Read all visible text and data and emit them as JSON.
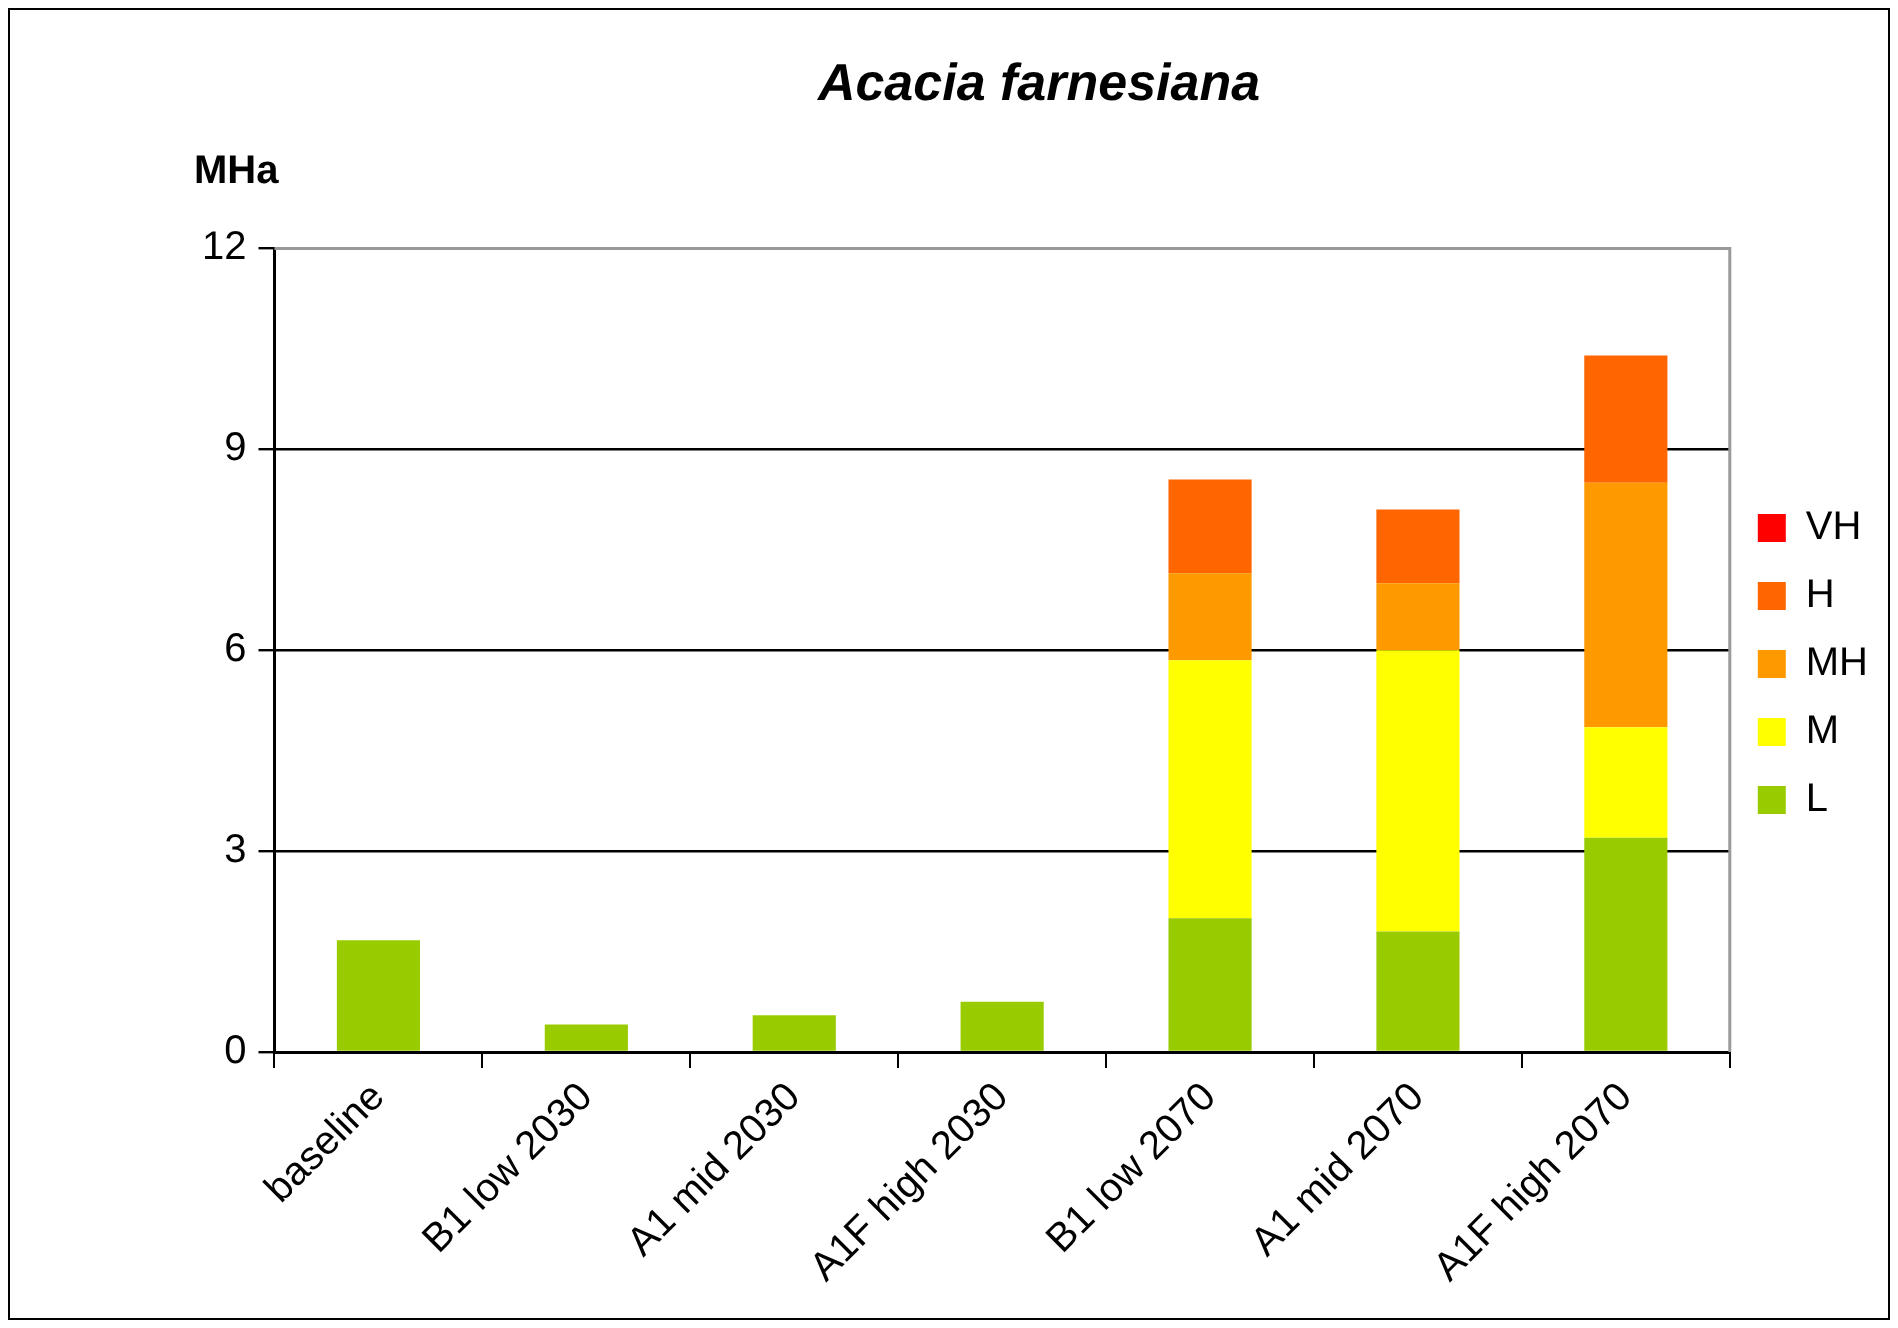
{
  "chart_data": {
    "type": "bar",
    "title": "Acacia farnesiana",
    "ylabel": "MHa",
    "categories": [
      "baseline",
      "B1 low 2030",
      "A1 mid 2030",
      "A1F high 2030",
      "B1 low 2070",
      "A1 mid 2070",
      "A1F high 2070"
    ],
    "series": [
      {
        "name": "L",
        "color": "#99cc00",
        "values": [
          1.67,
          0.41,
          0.55,
          0.75,
          2.0,
          1.8,
          3.2
        ]
      },
      {
        "name": "M",
        "color": "#ffff00",
        "values": [
          0,
          0,
          0,
          0,
          3.85,
          4.2,
          1.65
        ]
      },
      {
        "name": "MH",
        "color": "#ff9900",
        "values": [
          0,
          0,
          0,
          0,
          1.3,
          1.0,
          3.65
        ]
      },
      {
        "name": "H",
        "color": "#ff6600",
        "values": [
          0,
          0,
          0,
          0,
          1.4,
          1.1,
          1.9
        ]
      },
      {
        "name": "VH",
        "color": "#ff0000",
        "values": [
          0,
          0,
          0,
          0,
          0,
          0,
          0
        ]
      }
    ],
    "stacked": true,
    "ylim": [
      0,
      12
    ],
    "yticks": [
      0,
      3,
      6,
      9,
      12
    ],
    "grid": "y",
    "legend": "right"
  }
}
